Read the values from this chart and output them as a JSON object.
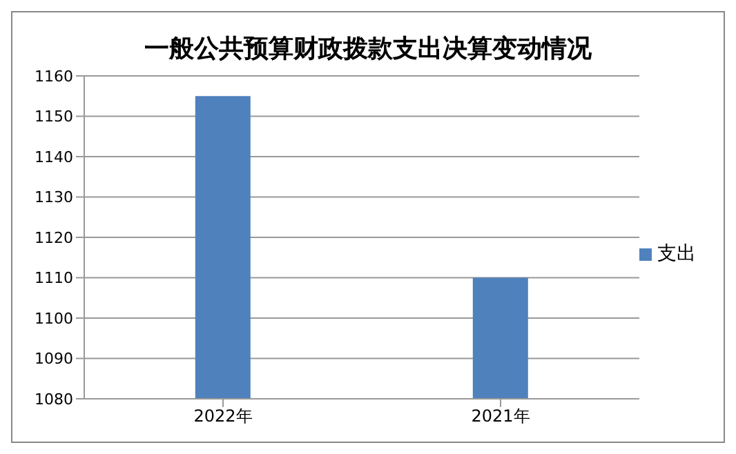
{
  "chart_data": {
    "type": "bar",
    "title": "一般公共预算财政拨款支出决算变动情况",
    "categories": [
      "2022年",
      "2021年"
    ],
    "series": [
      {
        "name": "支出",
        "color": "#4f81bd",
        "values": [
          1155,
          1110
        ]
      }
    ],
    "ylim": [
      1080,
      1160
    ],
    "yticks": [
      1080,
      1090,
      1100,
      1110,
      1120,
      1130,
      1140,
      1150,
      1160
    ],
    "grid": "y",
    "legend": "right"
  }
}
